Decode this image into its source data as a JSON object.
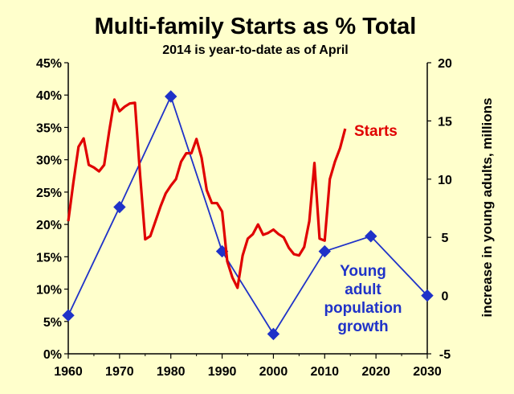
{
  "chart_data": {
    "type": "line",
    "title": "Multi-family Starts as % Total",
    "subtitle": "2014 is year-to-date as of April",
    "ylabel_left": "",
    "ylabel_right": "increase in young adults, millions",
    "xlim": [
      1960,
      2030
    ],
    "ylim_left": [
      0,
      45
    ],
    "ylim_right": [
      -5,
      20
    ],
    "x_ticks": [
      "1960",
      "1970",
      "1980",
      "1990",
      "2000",
      "2010",
      "2020",
      "2030"
    ],
    "y_left_ticks": [
      "0%",
      "5%",
      "10%",
      "15%",
      "20%",
      "25%",
      "30%",
      "35%",
      "40%",
      "45%"
    ],
    "y_right_ticks": [
      "-5",
      "0",
      "5",
      "10",
      "15",
      "20"
    ],
    "grid": false,
    "series": [
      {
        "name": "Starts",
        "axis": "left",
        "color": "#E00000",
        "x": [
          1960,
          1961,
          1962,
          1963,
          1964,
          1965,
          1966,
          1967,
          1968,
          1969,
          1970,
          1971,
          1972,
          1973,
          1974,
          1975,
          1976,
          1977,
          1978,
          1979,
          1980,
          1981,
          1982,
          1983,
          1984,
          1985,
          1986,
          1987,
          1988,
          1989,
          1990,
          1991,
          1992,
          1993,
          1994,
          1995,
          1996,
          1997,
          1998,
          1999,
          2000,
          2001,
          2002,
          2003,
          2004,
          2005,
          2006,
          2007,
          2008,
          2009,
          2010,
          2011,
          2012,
          2013,
          2014
        ],
        "values": [
          20.5,
          26.5,
          32,
          33.3,
          29.2,
          28.8,
          28.2,
          29.2,
          34.5,
          39.3,
          37.5,
          38.2,
          38.7,
          38.8,
          27.7,
          17.7,
          18.2,
          20.5,
          22.8,
          24.8,
          26,
          27,
          29.7,
          31,
          31,
          33.2,
          30.3,
          25.3,
          23.3,
          23.3,
          22,
          14.3,
          11.8,
          10.2,
          15.2,
          17.8,
          18.5,
          20,
          18.4,
          18.7,
          19.2,
          18.5,
          18.0,
          16.4,
          15.4,
          15.2,
          16.5,
          20.5,
          29.5,
          17.8,
          17.5,
          27,
          29.7,
          31.8,
          34.8
        ]
      },
      {
        "name": "Young adult population growth",
        "name_lines": [
          "Young",
          "adult",
          "population",
          "growth"
        ],
        "axis": "right",
        "color": "#1F32C8",
        "marker": "diamond",
        "x": [
          1960,
          1970,
          1980,
          1990,
          2000,
          2010,
          2019,
          2030
        ],
        "values": [
          -1.7,
          7.6,
          17.1,
          3.8,
          -3.3,
          3.8,
          5.1,
          0
        ]
      }
    ]
  }
}
